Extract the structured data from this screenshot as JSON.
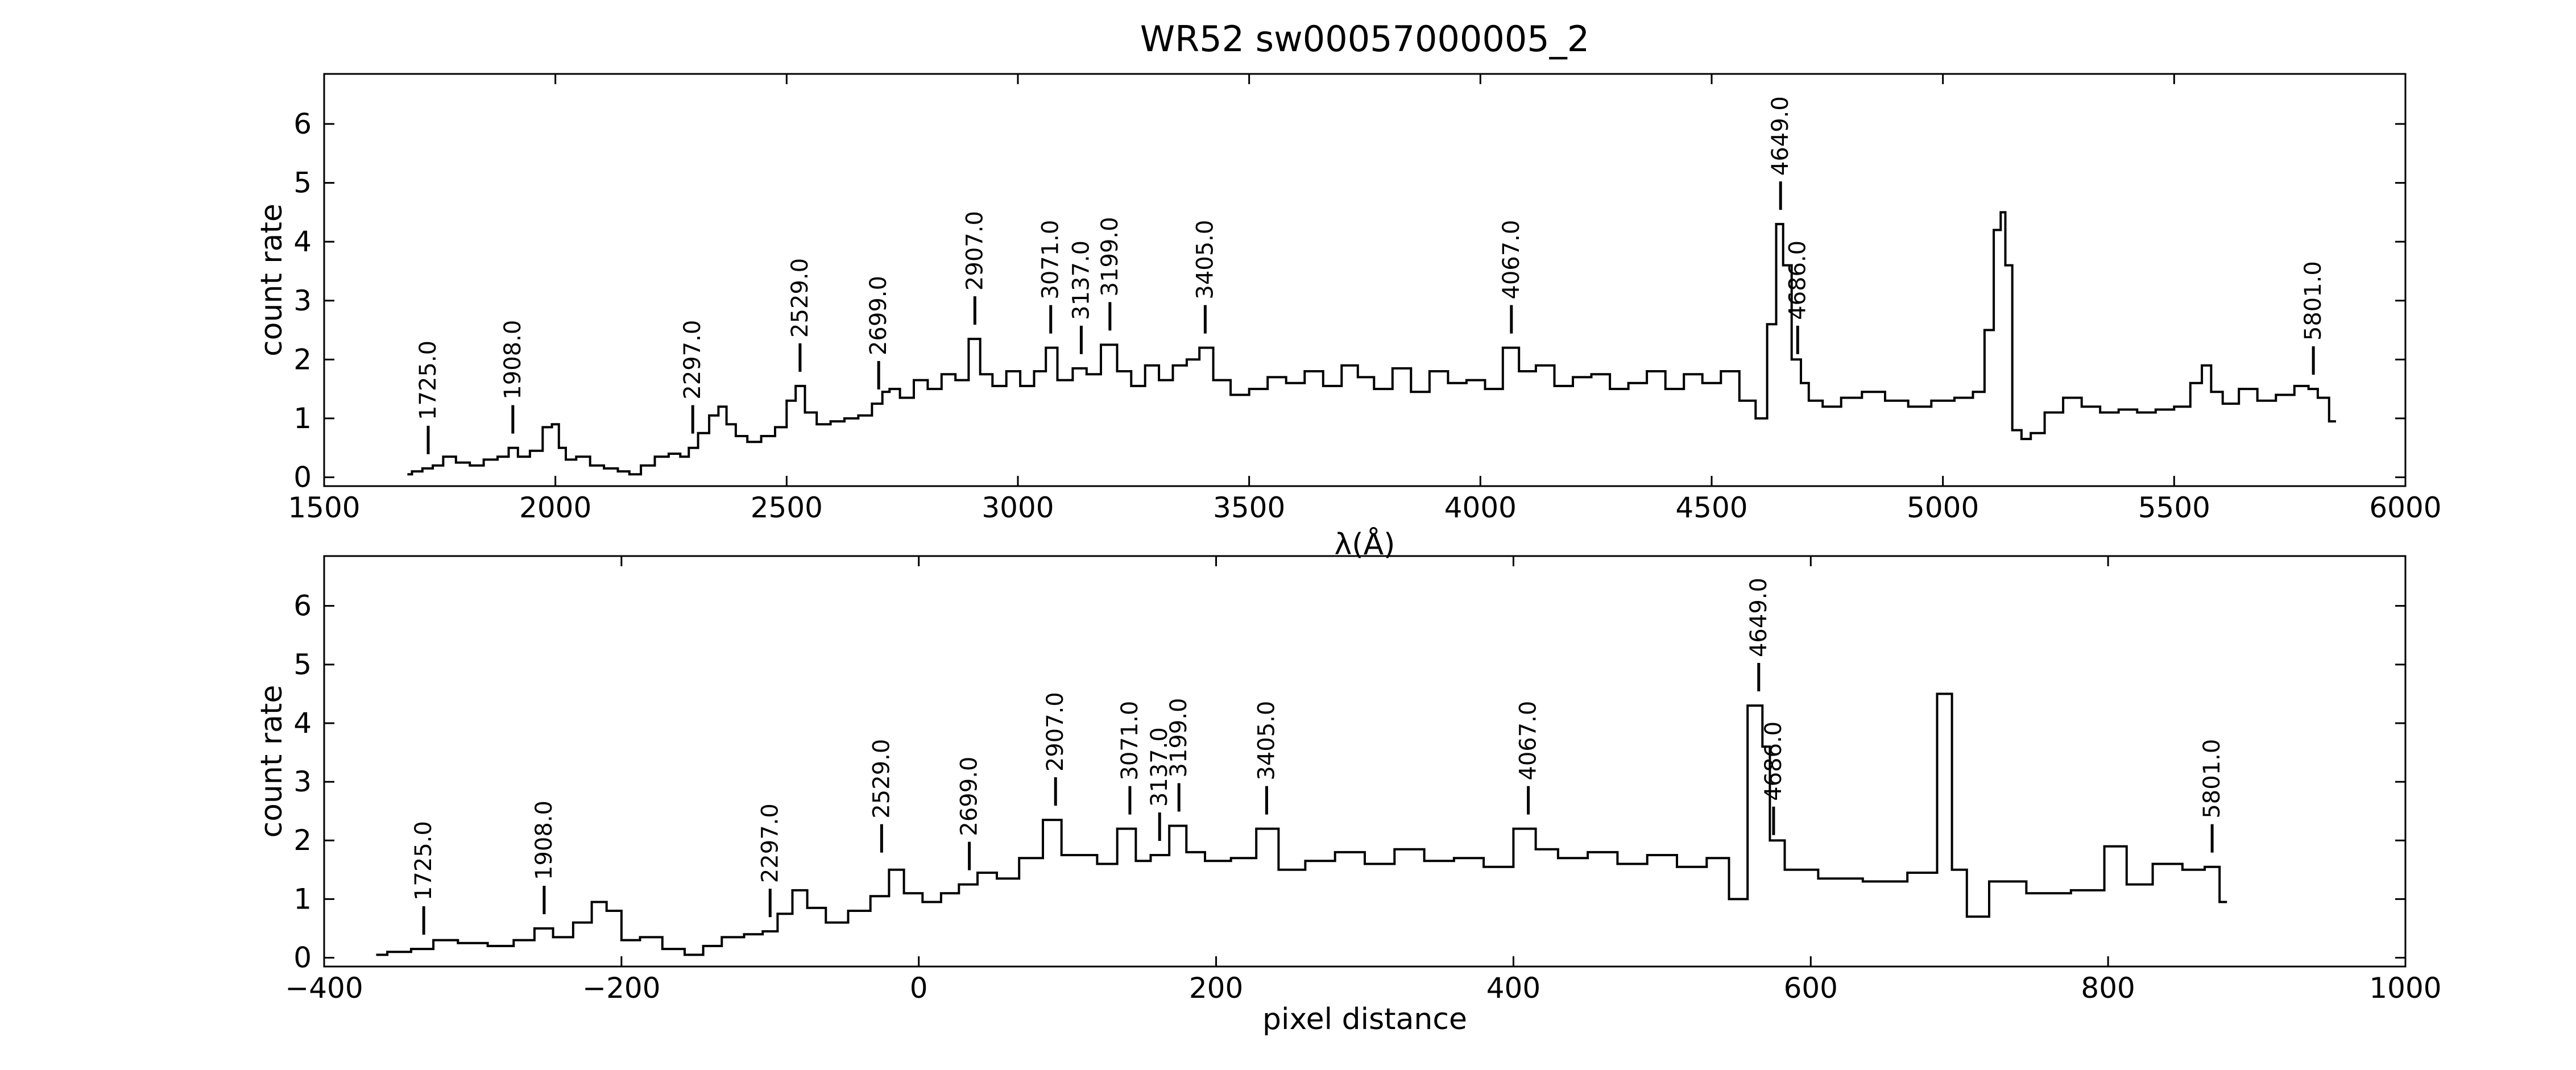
{
  "title": "WR52  sw00057000005_2",
  "chart_data": [
    {
      "type": "line",
      "xlabel": "λ(Å)",
      "ylabel": "count rate",
      "xlim": [
        1500,
        6000
      ],
      "ylim": [
        -0.15,
        6.85
      ],
      "xticks": [
        1500,
        2000,
        2500,
        3000,
        3500,
        4000,
        4500,
        5000,
        5500,
        6000
      ],
      "yticks": [
        0,
        1,
        2,
        3,
        4,
        5,
        6
      ],
      "series": [
        {
          "x": [
            1680,
            1700,
            1725,
            1745,
            1770,
            1800,
            1830,
            1860,
            1890,
            1908,
            1930,
            1960,
            1985,
            2000,
            2015,
            2030,
            2060,
            2090,
            2120,
            2150,
            2170,
            2200,
            2230,
            2260,
            2280,
            2297,
            2320,
            2345,
            2360,
            2380,
            2400,
            2430,
            2460,
            2490,
            2510,
            2529,
            2550,
            2580,
            2610,
            2640,
            2670,
            2699,
            2715,
            2730,
            2760,
            2790,
            2820,
            2850,
            2880,
            2907,
            2930,
            2960,
            2990,
            3020,
            3050,
            3071,
            3100,
            3137,
            3160,
            3199,
            3230,
            3260,
            3290,
            3320,
            3350,
            3380,
            3405,
            3440,
            3480,
            3520,
            3560,
            3600,
            3640,
            3680,
            3720,
            3750,
            3790,
            3830,
            3870,
            3910,
            3950,
            3990,
            4030,
            4067,
            4100,
            4140,
            4180,
            4220,
            4260,
            4300,
            4340,
            4380,
            4420,
            4460,
            4500,
            4540,
            4580,
            4610,
            4630,
            4649,
            4660,
            4686,
            4700,
            4720,
            4760,
            4800,
            4850,
            4900,
            4950,
            5000,
            5050,
            5080,
            5100,
            5120,
            5130,
            5140,
            5160,
            5180,
            5200,
            5240,
            5280,
            5320,
            5360,
            5400,
            5440,
            5480,
            5520,
            5550,
            5570,
            5590,
            5620,
            5660,
            5700,
            5740,
            5780,
            5801,
            5820,
            5850
          ],
          "y": [
            0.05,
            0.1,
            0.15,
            0.2,
            0.35,
            0.25,
            0.2,
            0.3,
            0.35,
            0.5,
            0.35,
            0.45,
            0.85,
            0.9,
            0.5,
            0.3,
            0.35,
            0.2,
            0.15,
            0.1,
            0.05,
            0.2,
            0.35,
            0.4,
            0.35,
            0.5,
            0.75,
            1.05,
            1.2,
            0.9,
            0.7,
            0.6,
            0.7,
            0.85,
            1.3,
            1.55,
            1.1,
            0.9,
            0.95,
            1.0,
            1.05,
            1.25,
            1.45,
            1.5,
            1.35,
            1.65,
            1.5,
            1.75,
            1.65,
            2.35,
            1.75,
            1.55,
            1.8,
            1.55,
            1.8,
            2.2,
            1.65,
            1.85,
            1.75,
            2.25,
            1.8,
            1.55,
            1.9,
            1.65,
            1.9,
            2.0,
            2.2,
            1.65,
            1.4,
            1.5,
            1.7,
            1.6,
            1.8,
            1.55,
            1.9,
            1.7,
            1.5,
            1.85,
            1.45,
            1.8,
            1.6,
            1.65,
            1.5,
            2.2,
            1.8,
            1.9,
            1.55,
            1.7,
            1.75,
            1.5,
            1.6,
            1.8,
            1.5,
            1.75,
            1.6,
            1.8,
            1.3,
            1.0,
            2.6,
            4.3,
            3.6,
            2.0,
            1.6,
            1.3,
            1.2,
            1.35,
            1.45,
            1.3,
            1.2,
            1.3,
            1.35,
            1.45,
            2.5,
            4.2,
            4.5,
            3.6,
            0.8,
            0.65,
            0.75,
            1.1,
            1.35,
            1.2,
            1.1,
            1.15,
            1.1,
            1.15,
            1.2,
            1.6,
            1.9,
            1.45,
            1.25,
            1.5,
            1.3,
            1.4,
            1.55,
            1.5,
            1.35,
            0.95
          ]
        }
      ],
      "annotations": [
        {
          "x": 1725,
          "y": 0.15,
          "label": "1725.0"
        },
        {
          "x": 1908,
          "y": 0.5,
          "label": "1908.0"
        },
        {
          "x": 2297,
          "y": 0.5,
          "label": "2297.0"
        },
        {
          "x": 2529,
          "y": 1.55,
          "label": "2529.0"
        },
        {
          "x": 2699,
          "y": 1.25,
          "label": "2699.0"
        },
        {
          "x": 2907,
          "y": 2.35,
          "label": "2907.0"
        },
        {
          "x": 3071,
          "y": 2.2,
          "label": "3071.0"
        },
        {
          "x": 3137,
          "y": 1.85,
          "label": "3137.0"
        },
        {
          "x": 3199,
          "y": 2.25,
          "label": "3199.0"
        },
        {
          "x": 3405,
          "y": 2.2,
          "label": "3405.0"
        },
        {
          "x": 4067,
          "y": 2.2,
          "label": "4067.0"
        },
        {
          "x": 4649,
          "y": 4.3,
          "label": "4649.0"
        },
        {
          "x": 4686,
          "y": 1.85,
          "label": "4686.0"
        },
        {
          "x": 5801,
          "y": 1.5,
          "label": "5801.0"
        }
      ]
    },
    {
      "type": "line",
      "xlabel": "pixel distance",
      "ylabel": "count rate",
      "xlim": [
        -400,
        1000
      ],
      "ylim": [
        -0.15,
        6.85
      ],
      "xticks": [
        -400,
        -200,
        0,
        200,
        400,
        600,
        800,
        1000
      ],
      "yticks": [
        0,
        1,
        2,
        3,
        4,
        5,
        6
      ],
      "series": [
        {
          "x": [
            -365,
            -350,
            -333,
            -320,
            -300,
            -280,
            -265,
            -252,
            -240,
            -225,
            -215,
            -205,
            -195,
            -180,
            -165,
            -150,
            -140,
            -125,
            -110,
            -100,
            -90,
            -80,
            -70,
            -55,
            -40,
            -25,
            -15,
            -5,
            10,
            20,
            34,
            45,
            60,
            75,
            92,
            100,
            115,
            125,
            142,
            150,
            162,
            175,
            185,
            200,
            220,
            234,
            250,
            270,
            290,
            310,
            330,
            350,
            370,
            390,
            410,
            420,
            440,
            460,
            480,
            500,
            520,
            540,
            550,
            565,
            570,
            575,
            590,
            620,
            650,
            680,
            690,
            700,
            710,
            730,
            760,
            790,
            805,
            820,
            840,
            860,
            870,
            880
          ],
          "y": [
            0.05,
            0.1,
            0.15,
            0.3,
            0.25,
            0.2,
            0.3,
            0.5,
            0.35,
            0.6,
            0.95,
            0.8,
            0.3,
            0.35,
            0.15,
            0.05,
            0.2,
            0.35,
            0.4,
            0.45,
            0.75,
            1.15,
            0.85,
            0.6,
            0.8,
            1.05,
            1.5,
            1.1,
            0.95,
            1.1,
            1.25,
            1.45,
            1.35,
            1.7,
            2.35,
            1.75,
            1.75,
            1.6,
            2.2,
            1.65,
            1.75,
            2.25,
            1.8,
            1.65,
            1.7,
            2.2,
            1.5,
            1.65,
            1.8,
            1.6,
            1.85,
            1.65,
            1.7,
            1.55,
            2.2,
            1.85,
            1.7,
            1.8,
            1.6,
            1.75,
            1.55,
            1.7,
            1.0,
            4.3,
            3.6,
            2.0,
            1.5,
            1.35,
            1.3,
            1.45,
            4.5,
            1.5,
            0.7,
            1.3,
            1.1,
            1.15,
            1.9,
            1.25,
            1.6,
            1.5,
            1.55,
            0.95
          ]
        }
      ],
      "annotations": [
        {
          "x": -333,
          "y": 0.15,
          "label": "1725.0"
        },
        {
          "x": -252,
          "y": 0.5,
          "label": "1908.0"
        },
        {
          "x": -100,
          "y": 0.45,
          "label": "2297.0"
        },
        {
          "x": -25,
          "y": 1.55,
          "label": "2529.0"
        },
        {
          "x": 34,
          "y": 1.25,
          "label": "2699.0"
        },
        {
          "x": 92,
          "y": 2.35,
          "label": "2907.0"
        },
        {
          "x": 142,
          "y": 2.2,
          "label": "3071.0"
        },
        {
          "x": 162,
          "y": 1.75,
          "label": "3137.0"
        },
        {
          "x": 175,
          "y": 2.25,
          "label": "3199.0"
        },
        {
          "x": 234,
          "y": 2.2,
          "label": "3405.0"
        },
        {
          "x": 410,
          "y": 2.2,
          "label": "4067.0"
        },
        {
          "x": 565,
          "y": 4.3,
          "label": "4649.0"
        },
        {
          "x": 575,
          "y": 1.85,
          "label": "4686.0"
        },
        {
          "x": 870,
          "y": 1.55,
          "label": "5801.0"
        }
      ]
    }
  ],
  "colors": {
    "line": "#000000",
    "background": "#ffffff"
  }
}
